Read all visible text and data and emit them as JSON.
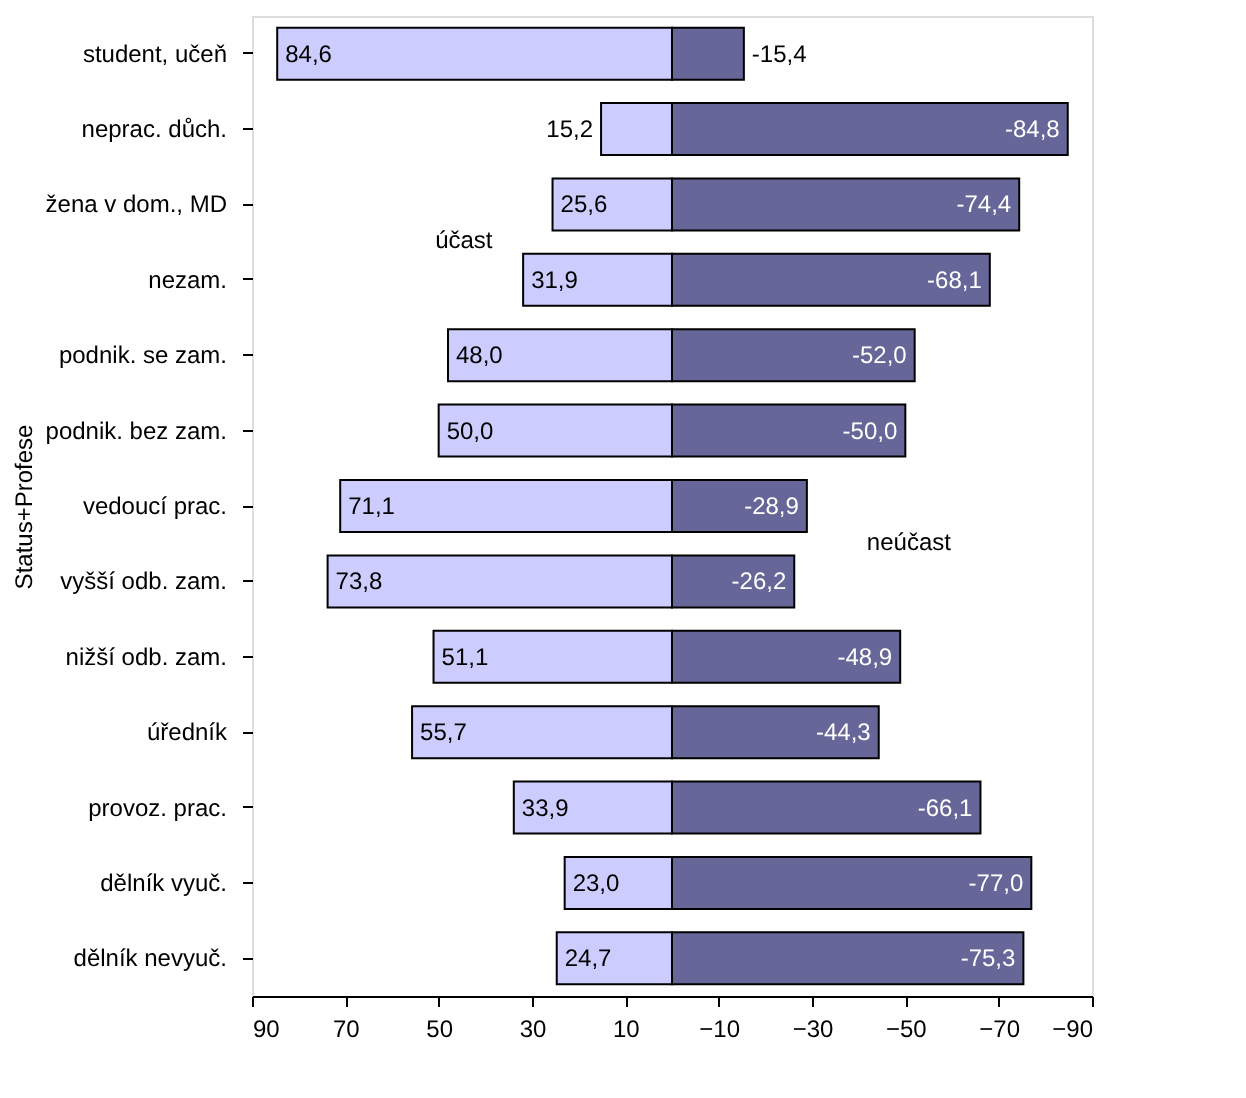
{
  "chart_data": {
    "type": "bar",
    "orientation": "horizontal",
    "stacked": true,
    "ylabel": "Status+Profese",
    "categories": [
      "student, učeň",
      "neprac. důch.",
      "žena v dom., MD",
      "nezam.",
      "podnik. se zam.",
      "podnik. bez zam.",
      "vedoucí prac.",
      "vyšší odb. zam.",
      "nižší odb. zam.",
      "úředník",
      "provoz. prac.",
      "dělník vyuč.",
      "dělník nevyuč."
    ],
    "series": [
      {
        "name": "účast",
        "color": "#ccccff",
        "values": [
          84.6,
          15.2,
          25.6,
          31.9,
          48.0,
          50.0,
          71.1,
          73.8,
          51.1,
          55.7,
          33.9,
          23.0,
          24.7
        ],
        "value_labels": [
          "84,6",
          "15,2",
          "25,6",
          "31,9",
          "48,0",
          "50,0",
          "71,1",
          "73,8",
          "51,1",
          "55,7",
          "33,9",
          "23,0",
          "24,7"
        ]
      },
      {
        "name": "neúčast",
        "color": "#666699",
        "values": [
          -15.4,
          -84.8,
          -74.4,
          -68.1,
          -52.0,
          -50.0,
          -28.9,
          -26.2,
          -48.9,
          -44.3,
          -66.1,
          -77.0,
          -75.3
        ],
        "value_labels": [
          "-15,4",
          "-84,8",
          "-74,4",
          "-68,1",
          "-52,0",
          "-50,0",
          "-28,9",
          "-26,2",
          "-48,9",
          "-44,3",
          "-66,1",
          "-77,0",
          "-75,3"
        ]
      }
    ],
    "xlim": [
      90,
      -90
    ],
    "xticks": [
      90,
      70,
      50,
      30,
      10,
      -10,
      -30,
      -50,
      -70,
      -90
    ]
  }
}
